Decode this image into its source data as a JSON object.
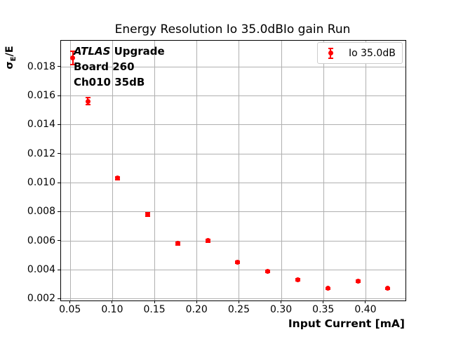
{
  "chart_data": {
    "type": "scatter",
    "title": "Energy Resolution Io 35.0dBIo gain Run",
    "xlabel": "Input Current [mA]",
    "ylabel": "σE/E",
    "xlim": [
      0.039,
      0.447
    ],
    "ylim": [
      0.0019,
      0.0198
    ],
    "grid": true,
    "grid_color": "#b0b0b0",
    "xticks": [
      0.05,
      0.1,
      0.15,
      0.2,
      0.25,
      0.3,
      0.35,
      0.4
    ],
    "xtick_labels": [
      "0.05",
      "0.10",
      "0.15",
      "0.20",
      "0.25",
      "0.30",
      "0.35",
      "0.40"
    ],
    "yticks": [
      0.002,
      0.004,
      0.006,
      0.008,
      0.01,
      0.012,
      0.014,
      0.016,
      0.018
    ],
    "ytick_labels": [
      "0.002",
      "0.004",
      "0.006",
      "0.008",
      "0.010",
      "0.012",
      "0.014",
      "0.016",
      "0.018"
    ],
    "legend": {
      "position": "upper right",
      "entries": [
        {
          "label": "Io 35.0dB",
          "color": "#ff0000",
          "marker": "errorbar-point"
        }
      ]
    },
    "series": [
      {
        "name": "Io 35.0dB",
        "color": "#ff0000",
        "marker": "circle",
        "points": [
          {
            "x": 0.0533,
            "y": 0.0186,
            "yerr": 0.00045
          },
          {
            "x": 0.0711,
            "y": 0.0156,
            "yerr": 0.00025
          },
          {
            "x": 0.1066,
            "y": 0.0103,
            "yerr": 0.0001
          },
          {
            "x": 0.1422,
            "y": 0.0078,
            "yerr": 0.0001
          },
          {
            "x": 0.1777,
            "y": 0.0058,
            "yerr": 0.0001
          },
          {
            "x": 0.2133,
            "y": 0.006,
            "yerr": 0.0001
          },
          {
            "x": 0.2488,
            "y": 0.0045,
            "yerr": 8e-05
          },
          {
            "x": 0.2844,
            "y": 0.0039,
            "yerr": 8e-05
          },
          {
            "x": 0.3199,
            "y": 0.0033,
            "yerr": 6e-05
          },
          {
            "x": 0.3555,
            "y": 0.0027,
            "yerr": 6e-05
          },
          {
            "x": 0.391,
            "y": 0.0032,
            "yerr": 6e-05
          },
          {
            "x": 0.4266,
            "y": 0.0027,
            "yerr": 6e-05
          }
        ]
      }
    ]
  },
  "labels": {
    "ylabel_sigma": "σ",
    "ylabel_sub": "E",
    "ylabel_rest": "/E"
  },
  "annotation": {
    "line1_italic": "ATLAS",
    "line1_bold": " Upgrade",
    "line2": "Board 260",
    "line3": "Ch010 35dB"
  },
  "colors": {
    "marker": "#ff0000",
    "grid": "#b0b0b0",
    "spine": "#000000",
    "legend_border": "#cccccc"
  }
}
